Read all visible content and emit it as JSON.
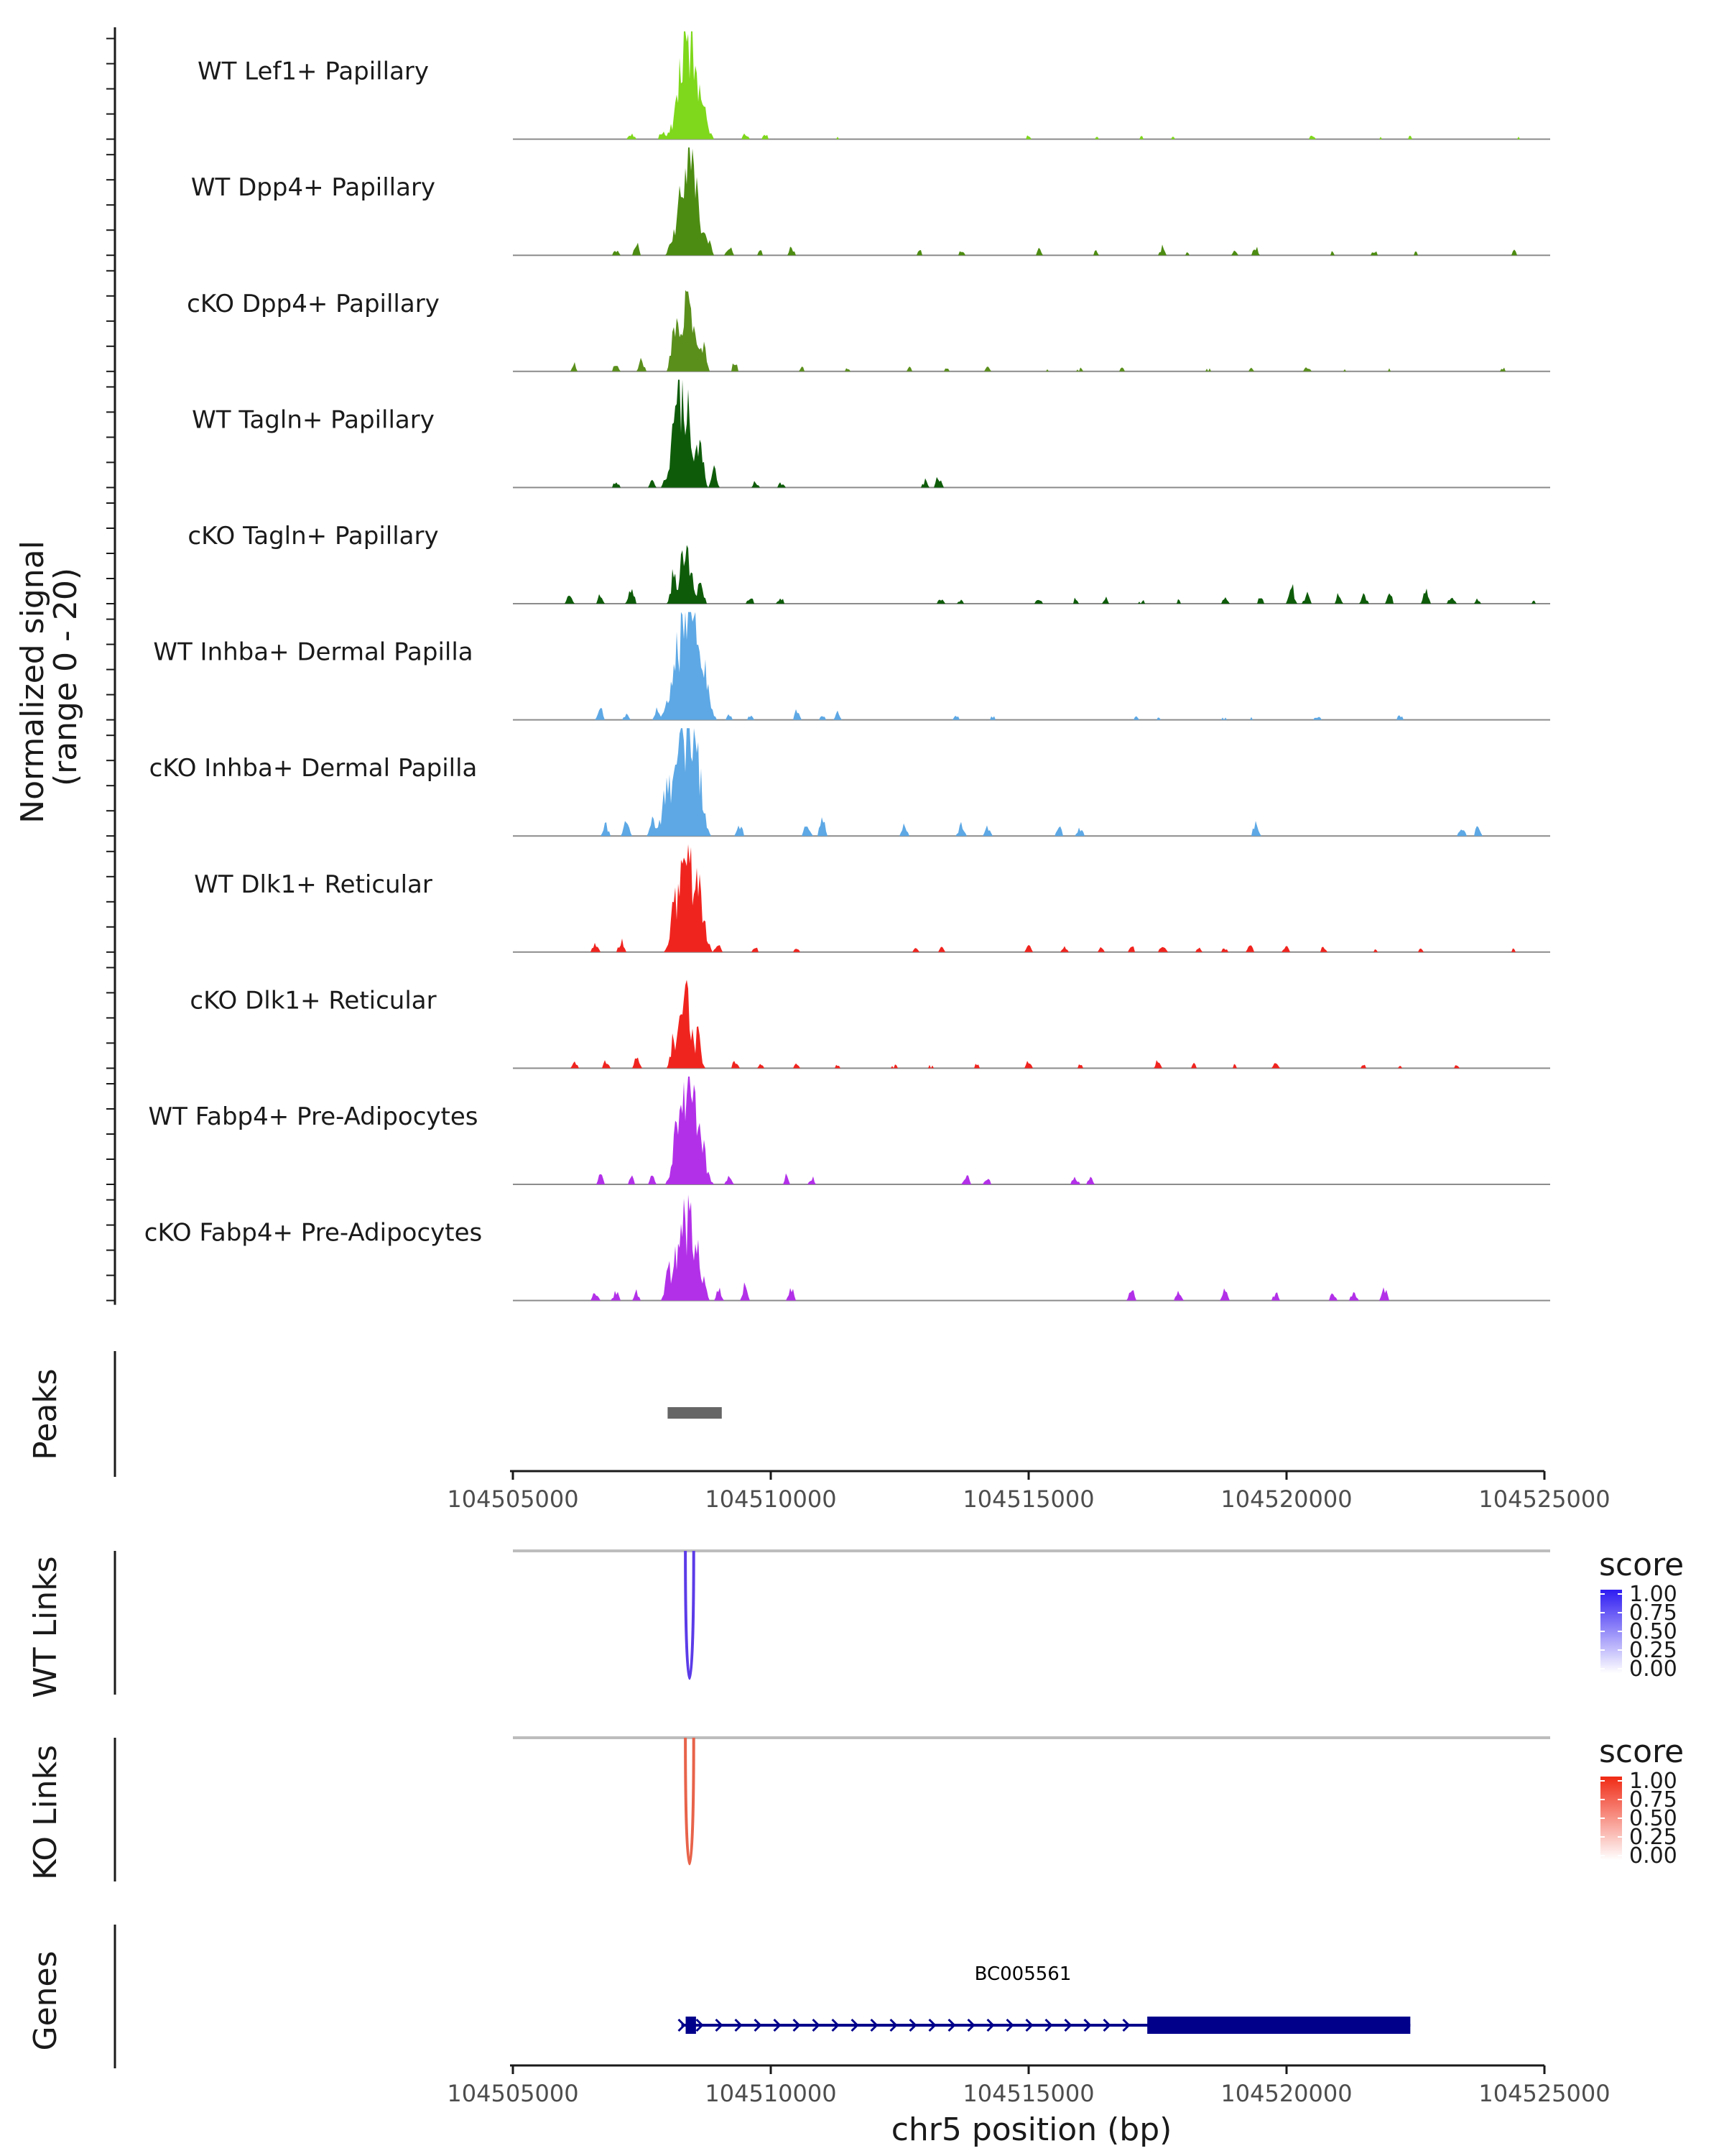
{
  "chart_data": {
    "type": "genome-track",
    "region": {
      "chromosome": "chr5",
      "start": 104505000,
      "end": 104526000
    },
    "coverage": {
      "ylabel": "Normalized signal\n(range 0 - 20)",
      "ylim": [
        0,
        20
      ],
      "tracks": [
        {
          "name": "WT Lef1+ Papillary",
          "color": "#7FD81B",
          "peaks": [
            [
              104508350,
              16
            ],
            [
              104508600,
              9
            ],
            [
              104507900,
              1.5
            ],
            [
              104507300,
              1
            ],
            [
              104509500,
              1
            ],
            [
              104509900,
              0.8
            ],
            [
              104511300,
              0.6
            ],
            [
              104515000,
              0.6
            ],
            [
              104516300,
              0.5
            ],
            [
              104517200,
              0.6
            ],
            [
              104517800,
              0.5
            ],
            [
              104520500,
              0.6
            ],
            [
              104521800,
              0.5
            ],
            [
              104522400,
              0.5
            ],
            [
              104524500,
              0.4
            ]
          ]
        },
        {
          "name": "WT Dpp4+ Papillary",
          "color": "#4D8C12",
          "peaks": [
            [
              104508350,
              18
            ],
            [
              104508550,
              8
            ],
            [
              104507400,
              2
            ],
            [
              104507000,
              1
            ],
            [
              104508800,
              2
            ],
            [
              104509200,
              1.5
            ],
            [
              104509800,
              0.8
            ],
            [
              104510400,
              1.5
            ],
            [
              104512900,
              0.8
            ],
            [
              104513700,
              0.8
            ],
            [
              104515200,
              1
            ],
            [
              104516300,
              0.8
            ],
            [
              104517600,
              1.5
            ],
            [
              104518100,
              0.6
            ],
            [
              104519000,
              0.8
            ],
            [
              104519400,
              1.4
            ],
            [
              104520900,
              0.7
            ],
            [
              104521700,
              0.8
            ],
            [
              104522500,
              0.6
            ],
            [
              104524400,
              0.8
            ]
          ]
        },
        {
          "name": "cKO Dpp4+ Papillary",
          "color": "#5A8F1C",
          "peaks": [
            [
              104508350,
              13
            ],
            [
              104508100,
              5
            ],
            [
              104508700,
              4
            ],
            [
              104507500,
              2
            ],
            [
              104507000,
              1.5
            ],
            [
              104506200,
              1.2
            ],
            [
              104509300,
              1.5
            ],
            [
              104510600,
              0.8
            ],
            [
              104511500,
              0.6
            ],
            [
              104512700,
              0.7
            ],
            [
              104513400,
              0.6
            ],
            [
              104514200,
              0.7
            ],
            [
              104515400,
              0.5
            ],
            [
              104516000,
              0.6
            ],
            [
              104516800,
              0.6
            ],
            [
              104518500,
              0.6
            ],
            [
              104519300,
              0.6
            ],
            [
              104520400,
              0.8
            ],
            [
              104521100,
              0.5
            ],
            [
              104522000,
              0.5
            ],
            [
              104524200,
              0.6
            ]
          ]
        },
        {
          "name": "WT Tagln+ Papillary",
          "color": "#0E5C0A",
          "peaks": [
            [
              104508350,
              15
            ],
            [
              104508150,
              8
            ],
            [
              104508650,
              6
            ],
            [
              104508900,
              3
            ],
            [
              104507000,
              1.2
            ],
            [
              104507700,
              1.2
            ],
            [
              104509700,
              1
            ],
            [
              104510200,
              0.8
            ],
            [
              104513000,
              1.2
            ],
            [
              104513250,
              2
            ]
          ]
        },
        {
          "name": "cKO Tagln+ Papillary",
          "color": "#0E5C0A",
          "peaks": [
            [
              104508350,
              9
            ],
            [
              104508100,
              4
            ],
            [
              104508650,
              4
            ],
            [
              104507300,
              3
            ],
            [
              104506700,
              1.5
            ],
            [
              104506100,
              1.5
            ],
            [
              104509600,
              1.2
            ],
            [
              104510200,
              1
            ],
            [
              104513300,
              1
            ],
            [
              104513700,
              0.8
            ],
            [
              104515200,
              1
            ],
            [
              104515900,
              0.8
            ],
            [
              104516500,
              1.2
            ],
            [
              104517200,
              0.7
            ],
            [
              104517900,
              0.6
            ],
            [
              104518800,
              1
            ],
            [
              104519500,
              1.1
            ],
            [
              104520100,
              3
            ],
            [
              104520400,
              2
            ],
            [
              104521000,
              1.5
            ],
            [
              104521500,
              1.5
            ],
            [
              104522000,
              1.6
            ],
            [
              104522700,
              2.5
            ],
            [
              104523200,
              1.3
            ],
            [
              104523700,
              0.8
            ],
            [
              104524800,
              0.5
            ]
          ]
        },
        {
          "name": "WT Inhba+ Dermal Papilla",
          "color": "#5DA8E5",
          "peaks": [
            [
              104508400,
              17
            ],
            [
              104508650,
              10
            ],
            [
              104508150,
              8
            ],
            [
              104507800,
              2
            ],
            [
              104506700,
              2
            ],
            [
              104507200,
              1
            ],
            [
              104509200,
              0.8
            ],
            [
              104509600,
              0.7
            ],
            [
              104510500,
              1.5
            ],
            [
              104511000,
              0.8
            ],
            [
              104511300,
              1.2
            ],
            [
              104513600,
              0.6
            ],
            [
              104514300,
              0.6
            ],
            [
              104517100,
              0.6
            ],
            [
              104517500,
              0.5
            ],
            [
              104518800,
              0.6
            ],
            [
              104519300,
              0.5
            ],
            [
              104520600,
              0.7
            ],
            [
              104522200,
              0.8
            ]
          ]
        },
        {
          "name": "cKO Inhba+ Dermal Papilla",
          "color": "#5DA8E5",
          "peaks": [
            [
              104508300,
              17
            ],
            [
              104508550,
              12
            ],
            [
              104508000,
              7
            ],
            [
              104507700,
              3
            ],
            [
              104506800,
              2
            ],
            [
              104507200,
              2.5
            ],
            [
              104509400,
              2
            ],
            [
              104510700,
              3
            ],
            [
              104511000,
              3
            ],
            [
              104512600,
              2
            ],
            [
              104513700,
              2.5
            ],
            [
              104514200,
              1.5
            ],
            [
              104515600,
              1.5
            ],
            [
              104516000,
              1.5
            ],
            [
              104519400,
              2
            ],
            [
              104523400,
              1.5
            ],
            [
              104523700,
              1.5
            ]
          ]
        },
        {
          "name": "WT Dlk1+ Reticular",
          "color": "#F0241F",
          "peaks": [
            [
              104508350,
              17
            ],
            [
              104508600,
              8
            ],
            [
              104508100,
              5
            ],
            [
              104507100,
              2
            ],
            [
              104506600,
              1.5
            ],
            [
              104509000,
              1.5
            ],
            [
              104509700,
              0.8
            ],
            [
              104510500,
              0.7
            ],
            [
              104512800,
              0.7
            ],
            [
              104513300,
              0.8
            ],
            [
              104515000,
              1
            ],
            [
              104515700,
              0.8
            ],
            [
              104516400,
              0.7
            ],
            [
              104517000,
              1
            ],
            [
              104517600,
              1.2
            ],
            [
              104518300,
              0.8
            ],
            [
              104518800,
              0.7
            ],
            [
              104519300,
              1
            ],
            [
              104520000,
              1.1
            ],
            [
              104520700,
              0.9
            ],
            [
              104521700,
              0.6
            ],
            [
              104522600,
              0.5
            ],
            [
              104524400,
              0.6
            ]
          ]
        },
        {
          "name": "cKO Dlk1+ Reticular",
          "color": "#F0241F",
          "peaks": [
            [
              104508350,
              12
            ],
            [
              104508600,
              5
            ],
            [
              104508100,
              4
            ],
            [
              104507400,
              2
            ],
            [
              104506800,
              1.2
            ],
            [
              104506200,
              1
            ],
            [
              104509300,
              1.3
            ],
            [
              104509800,
              0.8
            ],
            [
              104510500,
              0.8
            ],
            [
              104511300,
              0.7
            ],
            [
              104512400,
              0.6
            ],
            [
              104513100,
              0.6
            ],
            [
              104514000,
              0.8
            ],
            [
              104515000,
              1.2
            ],
            [
              104516000,
              0.8
            ],
            [
              104517500,
              1.2
            ],
            [
              104518200,
              0.8
            ],
            [
              104519000,
              0.7
            ],
            [
              104519800,
              1
            ],
            [
              104521500,
              0.6
            ],
            [
              104522200,
              0.5
            ],
            [
              104523300,
              0.6
            ]
          ]
        },
        {
          "name": "WT Fabp4+ Pre-Adipocytes",
          "color": "#B230E8",
          "peaks": [
            [
              104508350,
              16
            ],
            [
              104508600,
              9
            ],
            [
              104508150,
              6
            ],
            [
              104506700,
              1.5
            ],
            [
              104507300,
              1.2
            ],
            [
              104507700,
              1.5
            ],
            [
              104509200,
              1.5
            ],
            [
              104510300,
              1.5
            ],
            [
              104510800,
              1.2
            ],
            [
              104513800,
              1.4
            ],
            [
              104514200,
              1.2
            ],
            [
              104515900,
              1.4
            ],
            [
              104516200,
              1.2
            ]
          ]
        },
        {
          "name": "cKO Fabp4+ Pre-Adipocytes",
          "color": "#B230E8",
          "peaks": [
            [
              104508300,
              14
            ],
            [
              104508550,
              8
            ],
            [
              104508000,
              4
            ],
            [
              104506600,
              1.5
            ],
            [
              104507000,
              1.5
            ],
            [
              104507400,
              1.5
            ],
            [
              104509000,
              2
            ],
            [
              104509500,
              2.5
            ],
            [
              104510400,
              2
            ],
            [
              104517000,
              2
            ],
            [
              104517900,
              1.5
            ],
            [
              104518800,
              2
            ],
            [
              104519800,
              1.5
            ],
            [
              104520900,
              1.5
            ],
            [
              104521300,
              1.5
            ],
            [
              104521900,
              2
            ]
          ]
        }
      ]
    },
    "peaks_track": {
      "label": "Peaks",
      "regions": [
        [
          104508000,
          104509050
        ]
      ],
      "color": "#666666"
    },
    "x_axis": {
      "ticks": [
        104505000,
        104510000,
        104515000,
        104520000,
        104525000
      ],
      "tick_labels": [
        "104505000",
        "104510000",
        "104515000",
        "104520000",
        "104525000"
      ]
    },
    "links": [
      {
        "label": "WT Links",
        "color": "#5B3BE8",
        "arc": {
          "from": 104508400,
          "to": 104508450,
          "score": 1.0
        },
        "baseline_color": "#bdbdbd"
      },
      {
        "label": "KO Links",
        "color": "#E8634A",
        "arc": {
          "from": 104508400,
          "to": 104508450,
          "score": 0.8
        },
        "baseline_color": "#bdbdbd"
      }
    ],
    "legends": [
      {
        "title": "score",
        "ticks": [
          "1.00",
          "0.75",
          "0.50",
          "0.25",
          "0.00"
        ],
        "color_high": "#2E1BF2",
        "color_low": "#FFFFFF"
      },
      {
        "title": "score",
        "ticks": [
          "1.00",
          "0.75",
          "0.50",
          "0.25",
          "0.00"
        ],
        "color_high": "#F02A14",
        "color_low": "#FFFFFF"
      }
    ],
    "genes": {
      "label": "Genes",
      "color": "#00008B",
      "items": [
        {
          "name": "BC005561",
          "strand": "+",
          "start": 104508350,
          "end": 104522400,
          "exons": [
            [
              104508350,
              104508550
            ],
            [
              104517300,
              104522400
            ]
          ]
        }
      ]
    },
    "xlabel": "chr5 position (bp)"
  }
}
